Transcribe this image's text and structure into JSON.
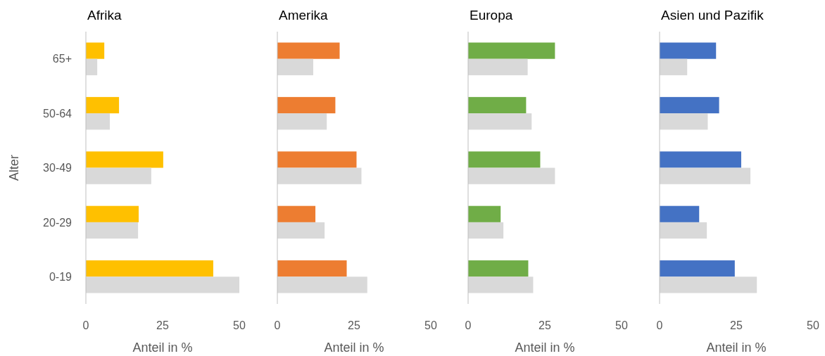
{
  "chart_data": [
    {
      "type": "bar",
      "orientation": "horizontal",
      "title": "Afrika",
      "xlabel": "Anteil in %",
      "ylabel": "Alter",
      "categories": [
        "65+",
        "50-64",
        "30-49",
        "20-29",
        "0-19"
      ],
      "xlim": [
        0,
        50
      ],
      "xticks": [
        0,
        25,
        50
      ],
      "grid": false,
      "series": [
        {
          "color": "#ffc000",
          "values": [
            6,
            10.8,
            25.2,
            17.2,
            41.5
          ]
        },
        {
          "color": "#d9d9d9",
          "values": [
            3.7,
            7.8,
            21.3,
            17,
            50
          ]
        }
      ]
    },
    {
      "type": "bar",
      "orientation": "horizontal",
      "title": "Amerika",
      "xlabel": "Anteil in %",
      "categories": [
        null,
        null,
        null,
        null,
        null
      ],
      "xlim": [
        0,
        50
      ],
      "xticks": [
        0,
        25,
        50
      ],
      "grid": false,
      "tick_labels": "x",
      "series": [
        {
          "color": "#ed7d31",
          "values": [
            20.3,
            18.9,
            25.8,
            12.4,
            22.6
          ]
        },
        {
          "color": "#d9d9d9",
          "values": [
            11.7,
            16.1,
            27.4,
            15.4,
            29.3
          ]
        }
      ]
    },
    {
      "type": "bar",
      "orientation": "horizontal",
      "title": "Europa",
      "xlabel": "Anteil in %",
      "categories": [
        null,
        null,
        null,
        null,
        null
      ],
      "xlim": [
        0,
        50
      ],
      "xticks": [
        0,
        25,
        50
      ],
      "grid": false,
      "tick_labels": "x",
      "series": [
        {
          "color": "#70ad47",
          "values": [
            28.3,
            18.9,
            23.5,
            10.6,
            19.6
          ]
        },
        {
          "color": "#d9d9d9",
          "values": [
            19.4,
            20.7,
            28.3,
            11.5,
            21.2
          ]
        }
      ]
    },
    {
      "type": "bar",
      "orientation": "horizontal",
      "title": "Asien und Pazifik",
      "xlabel": "Anteil in %",
      "categories": [
        null,
        null,
        null,
        null,
        null
      ],
      "xlim": [
        0,
        50
      ],
      "xticks": [
        0,
        25,
        50
      ],
      "grid": false,
      "tick_labels": "x",
      "series": [
        {
          "color": "#4472c4",
          "values": [
            18.4,
            19.4,
            26.6,
            12.9,
            24.5
          ]
        },
        {
          "color": "#d9d9d9",
          "values": [
            9,
            15.7,
            29.6,
            15.4,
            31.7
          ]
        }
      ]
    }
  ]
}
